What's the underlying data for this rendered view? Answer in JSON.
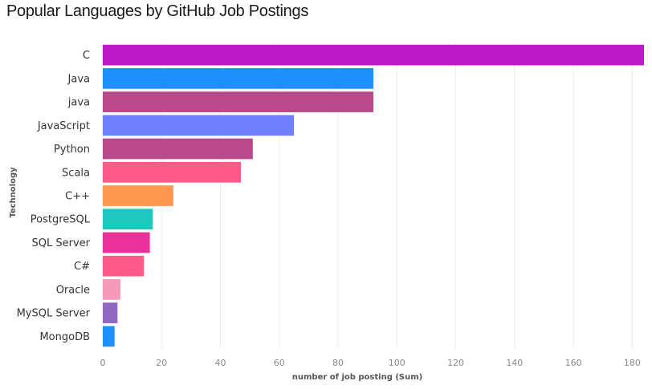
{
  "chart_data": {
    "type": "bar",
    "orientation": "horizontal",
    "title": "Popular Languages by GitHub Job Postings",
    "xlabel": "number of job posting (Sum)",
    "ylabel": "Technology",
    "xlim": [
      0,
      184
    ],
    "xticks": [
      0,
      20,
      40,
      60,
      80,
      100,
      120,
      140,
      160,
      180
    ],
    "grid": "vertical",
    "categories": [
      "C",
      "Java",
      "java",
      "JavaScript",
      "Python",
      "Scala",
      "C++",
      "PostgreSQL",
      "SQL Server",
      "C#",
      "Oracle",
      "MySQL Server",
      "MongoDB"
    ],
    "values": [
      184,
      92,
      92,
      65,
      51,
      47,
      24,
      17,
      16,
      14,
      6,
      5,
      4
    ],
    "colors": [
      "#bb1ac6",
      "#1e90ff",
      "#b9498a",
      "#7180ff",
      "#b9498a",
      "#ff5a8a",
      "#ff9750",
      "#1ec8bf",
      "#e8329a",
      "#ff5a8a",
      "#f59ab8",
      "#9068c0",
      "#1e90ff"
    ]
  }
}
